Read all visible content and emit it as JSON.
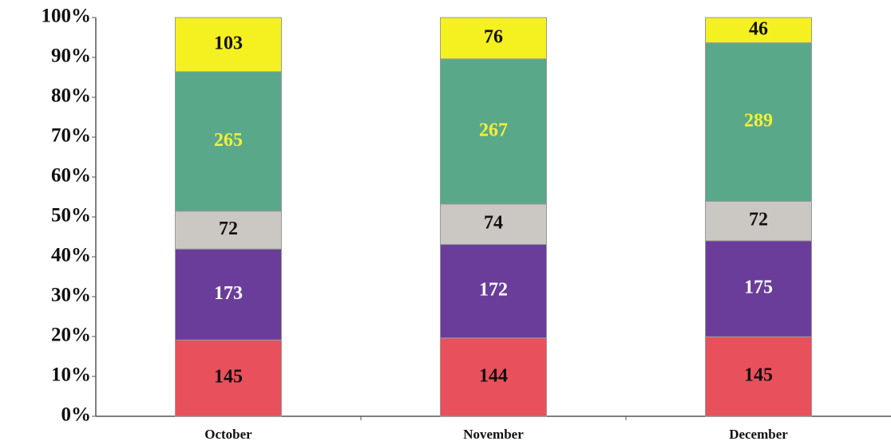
{
  "chart_data": {
    "type": "bar",
    "stacking": "percent",
    "categories": [
      "October",
      "November",
      "December"
    ],
    "series": [
      {
        "color": "#e8505b",
        "label_color": "#111111",
        "values": [
          145,
          144,
          145
        ]
      },
      {
        "color": "#6a3d9a",
        "label_color": "#ffffff",
        "values": [
          173,
          172,
          175
        ]
      },
      {
        "color": "#cbc7c3",
        "label_color": "#111111",
        "values": [
          72,
          74,
          72
        ]
      },
      {
        "color": "#5aa88a",
        "label_color": "#f3f03a",
        "values": [
          265,
          267,
          289
        ]
      },
      {
        "color": "#f5f020",
        "label_color": "#111111",
        "values": [
          103,
          76,
          46
        ]
      }
    ],
    "ylim": [
      0,
      100
    ],
    "yticks": [
      {
        "value": 0,
        "label": "0%"
      },
      {
        "value": 10,
        "label": "10%"
      },
      {
        "value": 20,
        "label": "20%"
      },
      {
        "value": 30,
        "label": "30%"
      },
      {
        "value": 40,
        "label": "40%"
      },
      {
        "value": 50,
        "label": "50%"
      },
      {
        "value": 60,
        "label": "60%"
      },
      {
        "value": 70,
        "label": "70%"
      },
      {
        "value": 80,
        "label": "80%"
      },
      {
        "value": 90,
        "label": "90%"
      },
      {
        "value": 100,
        "label": "100%"
      }
    ],
    "grid": false
  }
}
